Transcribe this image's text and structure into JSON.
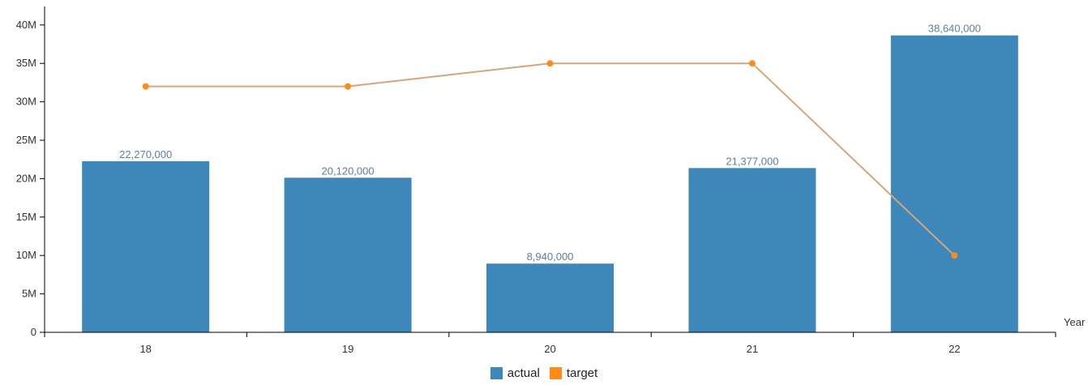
{
  "chart_data": {
    "type": "bar",
    "categories": [
      "18",
      "19",
      "20",
      "21",
      "22"
    ],
    "xlabel": "Year",
    "ylabel": "",
    "ylim": [
      0,
      42000000
    ],
    "yticks": [
      0,
      5000000,
      10000000,
      15000000,
      20000000,
      25000000,
      30000000,
      35000000,
      40000000
    ],
    "ytick_labels": [
      "0",
      "5M",
      "10M",
      "15M",
      "20M",
      "25M",
      "30M",
      "35M",
      "40M"
    ],
    "grid": false,
    "legend_position": "bottom-center",
    "series": [
      {
        "name": "actual",
        "kind": "bar",
        "color": "#3d87bb",
        "values": [
          22270000,
          20120000,
          8940000,
          21377000,
          38640000
        ],
        "labels": [
          "22,270,000",
          "20,120,000",
          "8,940,000",
          "21,377,000",
          "38,640,000"
        ]
      },
      {
        "name": "target",
        "kind": "line",
        "color": "#ff8c1a",
        "line_color": "#d6a678",
        "values": [
          32000000,
          32000000,
          35000000,
          35000000,
          10000000
        ]
      }
    ]
  }
}
